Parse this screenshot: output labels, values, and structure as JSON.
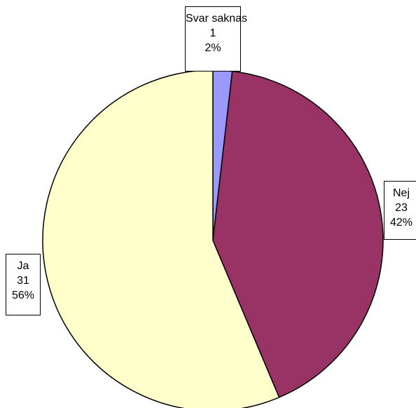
{
  "chart_data": {
    "type": "pie",
    "title": "",
    "slices": [
      {
        "label": "Svar saknas",
        "value": 1,
        "percent": "2%",
        "color": "#9999ff"
      },
      {
        "label": "Nej",
        "value": 23,
        "percent": "42%",
        "color": "#993366"
      },
      {
        "label": "Ja",
        "value": 31,
        "percent": "56%",
        "color": "#ffffcc"
      }
    ],
    "start_angle": "12 o'clock",
    "direction": "clockwise",
    "value_display": [
      "label",
      "value",
      "percent"
    ]
  }
}
